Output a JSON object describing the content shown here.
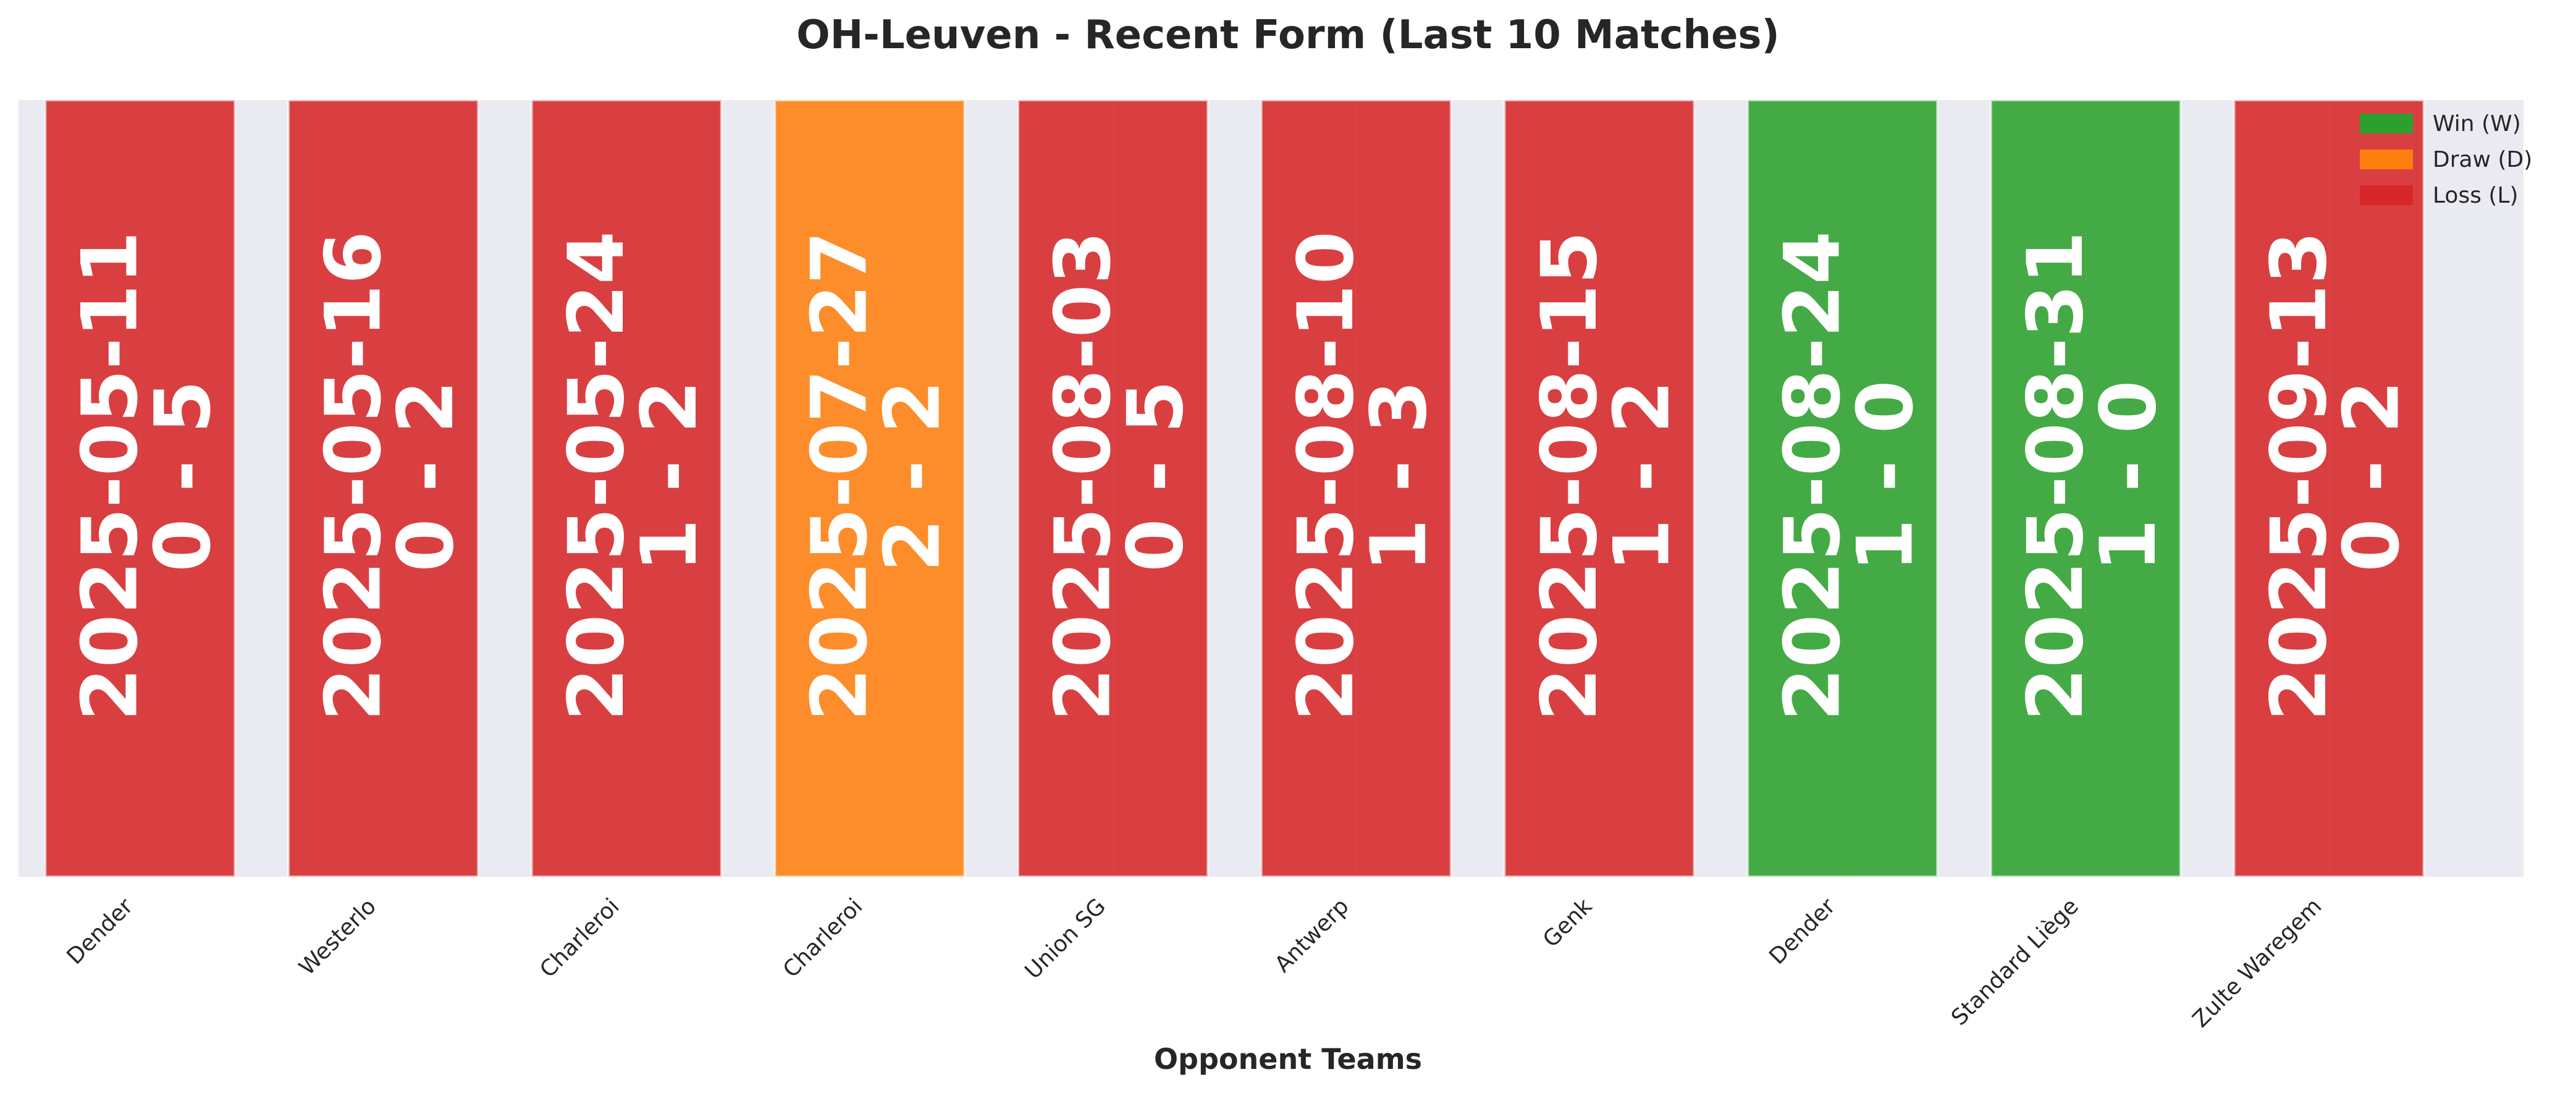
{
  "chart_data": {
    "type": "bar",
    "title": "OH-Leuven - Recent Form (Last 10 Matches)",
    "xlabel": "Opponent Teams",
    "ylabel": "",
    "ylim": [
      0,
      1
    ],
    "grid": true,
    "legend_position": "top-right",
    "legend": [
      {
        "label": "Win (W)",
        "result": "W"
      },
      {
        "label": "Draw (D)",
        "result": "D"
      },
      {
        "label": "Loss (L)",
        "result": "L"
      }
    ],
    "colors": {
      "W": "#2ca02c",
      "D": "#ff7f0e",
      "L": "#d62728"
    },
    "background": "#eaeaf2",
    "categories": [
      "Dender",
      "Westerlo",
      "Charleroi",
      "Charleroi",
      "Union SG",
      "Antwerp",
      "Genk",
      "Dender",
      "Standard Liège",
      "Zulte Waregem"
    ],
    "values": [
      1,
      1,
      1,
      1,
      1,
      1,
      1,
      1,
      1,
      1
    ],
    "matches": [
      {
        "opponent": "Dender",
        "date": "2025-05-11",
        "score": "0 - 5",
        "result": "L"
      },
      {
        "opponent": "Westerlo",
        "date": "2025-05-16",
        "score": "0 - 2",
        "result": "L"
      },
      {
        "opponent": "Charleroi",
        "date": "2025-05-24",
        "score": "1 - 2",
        "result": "L"
      },
      {
        "opponent": "Charleroi",
        "date": "2025-07-27",
        "score": "2 - 2",
        "result": "D"
      },
      {
        "opponent": "Union SG",
        "date": "2025-08-03",
        "score": "0 - 5",
        "result": "L"
      },
      {
        "opponent": "Antwerp",
        "date": "2025-08-10",
        "score": "1 - 3",
        "result": "L"
      },
      {
        "opponent": "Genk",
        "date": "2025-08-15",
        "score": "1 - 2",
        "result": "L"
      },
      {
        "opponent": "Dender",
        "date": "2025-08-24",
        "score": "1 - 0",
        "result": "W"
      },
      {
        "opponent": "Standard Liège",
        "date": "2025-08-31",
        "score": "1 - 0",
        "result": "W"
      },
      {
        "opponent": "Zulte Waregem",
        "date": "2025-09-13",
        "score": "0 - 2",
        "result": "L"
      }
    ]
  }
}
